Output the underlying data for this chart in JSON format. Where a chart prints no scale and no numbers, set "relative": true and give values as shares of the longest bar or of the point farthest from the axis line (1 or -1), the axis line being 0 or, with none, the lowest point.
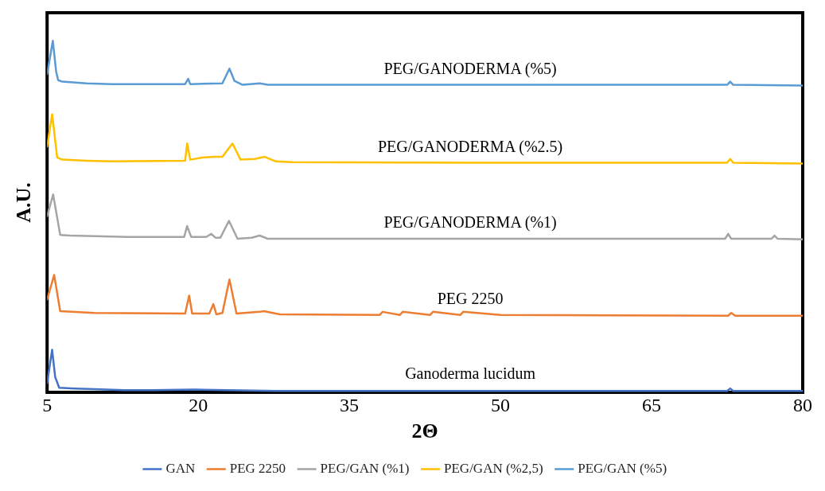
{
  "chart_data": {
    "type": "line",
    "relative": true,
    "xlabel": "2Θ",
    "ylabel": "A.U.",
    "xlim": [
      5,
      80
    ],
    "xticks": [
      5,
      20,
      35,
      50,
      65,
      80
    ],
    "grid": false,
    "legend": "bottom",
    "marker": "none",
    "line_style": "solid",
    "annotations": [
      "PEG/GANODERMA (%5)",
      "PEG/GANODERMA (%2.5)",
      "PEG/GANODERMA (%1)",
      "PEG 2250",
      "Ganoderma lucidum"
    ],
    "series": [
      {
        "name": "GAN",
        "color": "#4472c4",
        "x": [
          5,
          5.5,
          5.8,
          6.2,
          7.7,
          9.7,
          12.6,
          15.5,
          19.6,
          22.8,
          27.7,
          40,
          55,
          72.5,
          72.8,
          73.1,
          80
        ],
        "values": [
          0.026,
          0.121,
          0.044,
          0.013,
          0.011,
          0.009,
          0.006,
          0.006,
          0.008,
          0.006,
          0.004,
          0.004,
          0.004,
          0.004,
          0.011,
          0.004,
          0.004
        ]
      },
      {
        "name": "PEG 2250",
        "color": "#ed7d31",
        "x": [
          5,
          5.7,
          6.3,
          9.7,
          18.7,
          19.1,
          19.4,
          21.1,
          21.5,
          21.8,
          22.4,
          23.1,
          23.8,
          26.1,
          26.5,
          27.7,
          28.1,
          38,
          38.3,
          40,
          40.3,
          43,
          43.3,
          46,
          46.3,
          50,
          72.6,
          72.9,
          73.3,
          80
        ],
        "values": [
          0.264,
          0.334,
          0.231,
          0.226,
          0.224,
          0.275,
          0.224,
          0.224,
          0.251,
          0.222,
          0.226,
          0.321,
          0.224,
          0.229,
          0.231,
          0.224,
          0.222,
          0.22,
          0.229,
          0.22,
          0.229,
          0.22,
          0.229,
          0.22,
          0.229,
          0.22,
          0.218,
          0.226,
          0.218,
          0.218
        ]
      },
      {
        "name": "PEG/GAN (%1)",
        "color": "#a5a5a5",
        "x": [
          5,
          5.6,
          6.3,
          7.3,
          13,
          18.6,
          18.9,
          19.3,
          20.8,
          21.3,
          21.7,
          22.2,
          23.05,
          23.9,
          25.3,
          26.1,
          26.9,
          50,
          72.3,
          72.6,
          72.9,
          76.9,
          77.2,
          77.5,
          80
        ],
        "values": [
          0.501,
          0.563,
          0.448,
          0.446,
          0.442,
          0.442,
          0.473,
          0.442,
          0.442,
          0.451,
          0.44,
          0.44,
          0.488,
          0.437,
          0.44,
          0.446,
          0.437,
          0.437,
          0.437,
          0.451,
          0.437,
          0.437,
          0.446,
          0.437,
          0.435
        ]
      },
      {
        "name": "PEG/GAN (%2,5)",
        "color": "#ffc000",
        "x": [
          5,
          5.5,
          6,
          6.5,
          8.9,
          11.4,
          18.7,
          18.9,
          19.2,
          20.4,
          21.6,
          22.4,
          23.4,
          24.2,
          25.6,
          26.6,
          27.7,
          29.3,
          50,
          72.5,
          72.8,
          73.1,
          80
        ],
        "values": [
          0.699,
          0.791,
          0.668,
          0.662,
          0.659,
          0.657,
          0.659,
          0.708,
          0.662,
          0.668,
          0.67,
          0.67,
          0.708,
          0.662,
          0.664,
          0.67,
          0.657,
          0.655,
          0.653,
          0.653,
          0.664,
          0.653,
          0.651
        ]
      },
      {
        "name": "PEG/GAN (%5)",
        "color": "#5b9bd5",
        "x": [
          5,
          5.57,
          5.9,
          6.1,
          6.5,
          8.9,
          11.4,
          18.7,
          19,
          19.2,
          22.4,
          23.1,
          23.6,
          24.4,
          26.1,
          26.9,
          50,
          72.5,
          72.8,
          73.1,
          80
        ],
        "values": [
          0.905,
          1,
          0.912,
          0.888,
          0.884,
          0.879,
          0.877,
          0.877,
          0.892,
          0.877,
          0.879,
          0.921,
          0.886,
          0.875,
          0.879,
          0.875,
          0.875,
          0.875,
          0.884,
          0.875,
          0.873
        ]
      }
    ]
  }
}
